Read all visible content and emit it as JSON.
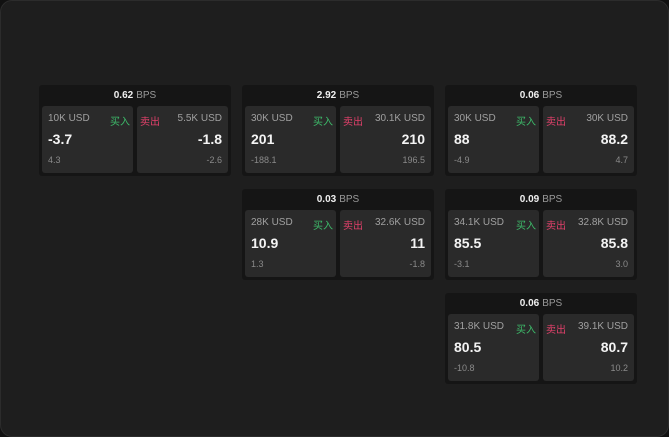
{
  "labels": {
    "buy": "买入",
    "sell": "卖出",
    "unit": "BPS"
  },
  "colors": {
    "buy": "#3dbb6a",
    "sell": "#e0406a"
  },
  "cards": [
    {
      "bps": "0.62",
      "buy_size": "10K USD",
      "buy_price": "-3.7",
      "buy_change": "4.3",
      "sell_size": "5.5K USD",
      "sell_price": "-1.8",
      "sell_change": "-2.6"
    },
    {
      "bps": "2.92",
      "buy_size": "30K USD",
      "buy_price": "201",
      "buy_change": "-188.1",
      "sell_size": "30.1K USD",
      "sell_price": "210",
      "sell_change": "196.5"
    },
    {
      "bps": "0.06",
      "buy_size": "30K USD",
      "buy_price": "88",
      "buy_change": "-4.9",
      "sell_size": "30K USD",
      "sell_price": "88.2",
      "sell_change": "4.7"
    },
    {
      "bps": "0.03",
      "buy_size": "28K USD",
      "buy_price": "10.9",
      "buy_change": "1.3",
      "sell_size": "32.6K USD",
      "sell_price": "11",
      "sell_change": "-1.8"
    },
    {
      "bps": "0.09",
      "buy_size": "34.1K USD",
      "buy_price": "85.5",
      "buy_change": "-3.1",
      "sell_size": "32.8K USD",
      "sell_price": "85.8",
      "sell_change": "3.0"
    },
    {
      "bps": "0.06",
      "buy_size": "31.8K USD",
      "buy_price": "80.5",
      "buy_change": "-10.8",
      "sell_size": "39.1K USD",
      "sell_price": "80.7",
      "sell_change": "10.2"
    }
  ]
}
